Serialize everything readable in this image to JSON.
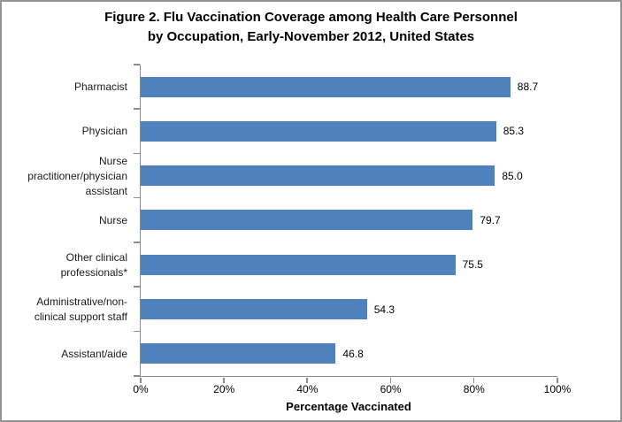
{
  "title": {
    "line1": "Figure 2. Flu Vaccination Coverage among Health Care Personnel",
    "line2": "by Occupation, Early-November 2012, United States"
  },
  "chart_data": {
    "type": "bar",
    "orientation": "horizontal",
    "title": "Figure 2. Flu Vaccination Coverage among Health Care Personnel by Occupation, Early-November 2012, United States",
    "categories": [
      "Pharmacist",
      "Physician",
      "Nurse practitioner/physician assistant",
      "Nurse",
      "Other clinical professionals*",
      "Administrative/non-clinical support staff",
      "Assistant/aide"
    ],
    "category_lines": [
      [
        "Pharmacist"
      ],
      [
        "Physician"
      ],
      [
        "Nurse",
        "practitioner/physician",
        "assistant"
      ],
      [
        "Nurse"
      ],
      [
        "Other clinical",
        "professionals*"
      ],
      [
        "Administrative/non-",
        "clinical support staff"
      ],
      [
        "Assistant/aide"
      ]
    ],
    "values": [
      88.7,
      85.3,
      85.0,
      79.7,
      75.5,
      54.3,
      46.8
    ],
    "value_labels": [
      "88.7",
      "85.3",
      "85.0",
      "79.7",
      "75.5",
      "54.3",
      "46.8"
    ],
    "xlabel": "Percentage Vaccinated",
    "ylabel": "",
    "x_ticks": [
      "0%",
      "20%",
      "40%",
      "60%",
      "80%",
      "100%"
    ],
    "xlim": [
      0,
      100
    ],
    "grid": false,
    "legend": null,
    "bar_color": "#4F81BD",
    "axis_color": "#8C8C8C",
    "text_color": "#000000"
  }
}
